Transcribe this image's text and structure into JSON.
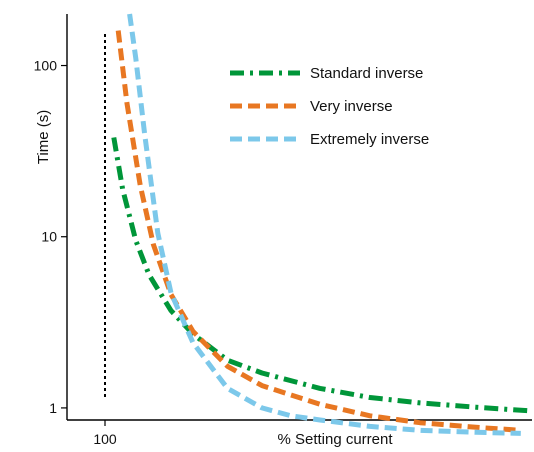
{
  "figure_id": "DE55792",
  "chart_data": {
    "type": "line",
    "title": "",
    "xlabel": "% Setting current",
    "ylabel": "Time (s)",
    "yscale": "log",
    "xlim": [
      90,
      800
    ],
    "ylim": [
      0.85,
      200
    ],
    "x_ticks": [
      {
        "value": 100,
        "label": "100"
      }
    ],
    "y_ticks": [
      {
        "value": 1,
        "label": "1"
      },
      {
        "value": 10,
        "label": "10"
      },
      {
        "value": 100,
        "label": "100"
      }
    ],
    "reference_line": {
      "x": 100,
      "style": "dotted"
    },
    "grid": false,
    "legend_position": "top-right",
    "series": [
      {
        "name": "Standard inverse",
        "color": "#009639",
        "dash": "dash-dot",
        "x": [
          110,
          120,
          135,
          150,
          175,
          200,
          250,
          300,
          400,
          500,
          600,
          700,
          800
        ],
        "y": [
          38,
          19,
          9.5,
          6.0,
          3.7,
          2.7,
          1.9,
          1.6,
          1.3,
          1.15,
          1.07,
          1.01,
          0.96
        ]
      },
      {
        "name": "Very inverse",
        "color": "#E87722",
        "dash": "dashed",
        "x": [
          115,
          125,
          140,
          155,
          175,
          200,
          250,
          300,
          400,
          500,
          600,
          700,
          780
        ],
        "y": [
          160,
          60,
          20,
          9.0,
          4.6,
          2.8,
          1.75,
          1.35,
          1.05,
          0.9,
          0.82,
          0.77,
          0.74
        ]
      },
      {
        "name": "Extremely inverse",
        "color": "#7CC8EA",
        "dash": "dashed",
        "x": [
          128,
          135,
          145,
          160,
          175,
          200,
          250,
          300,
          350,
          400,
          500,
          600,
          700,
          780
        ],
        "y": [
          200,
          110,
          40,
          10.5,
          4.7,
          2.4,
          1.3,
          1.0,
          0.9,
          0.85,
          0.78,
          0.74,
          0.72,
          0.71
        ]
      }
    ]
  }
}
